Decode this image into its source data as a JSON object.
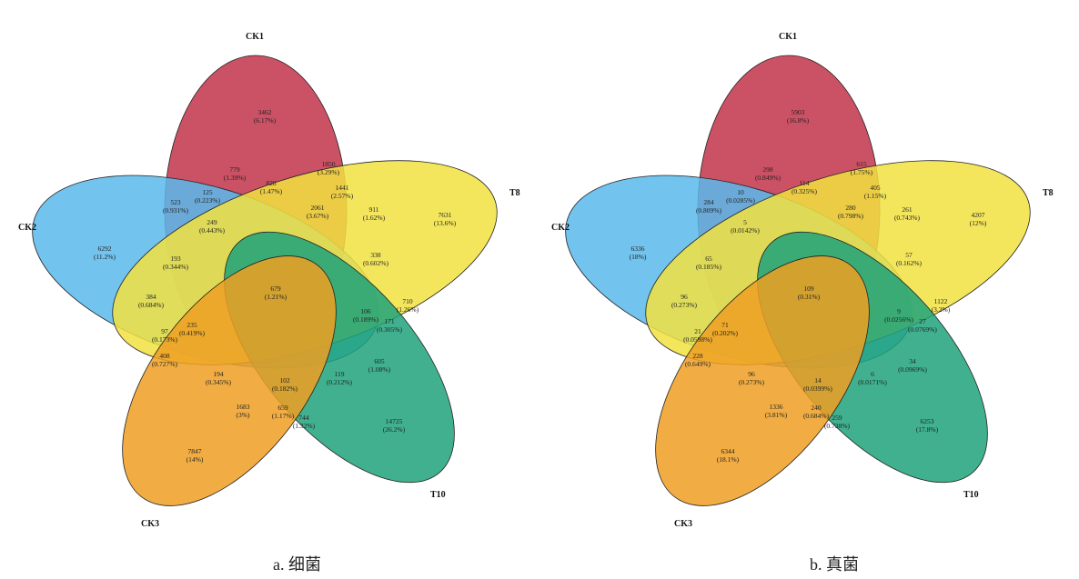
{
  "colors": {
    "CK1": "#c2324a",
    "CK2": "#5ab8ec",
    "T8": "#f2e240",
    "T10": "#1fa27a",
    "CK3": "#ef9f22"
  },
  "venns": [
    {
      "caption": "a. 细菌",
      "set_labels": {
        "CK1": "CK1",
        "CK2": "CK2",
        "T8": "T8",
        "T10": "T10",
        "CK3": "CK3"
      },
      "regions": [
        {
          "c": "3462",
          "p": "(6.17%)"
        },
        {
          "c": "6292",
          "p": "(11.2%)"
        },
        {
          "c": "7631",
          "p": "(13.6%)"
        },
        {
          "c": "14725",
          "p": "(26.2%)"
        },
        {
          "c": "7847",
          "p": "(14%)"
        },
        {
          "c": "779",
          "p": "(1.39%)"
        },
        {
          "c": "1850",
          "p": "(3.29%)"
        },
        {
          "c": "828",
          "p": "(1.47%)"
        },
        {
          "c": "1441",
          "p": "(2.57%)"
        },
        {
          "c": "125",
          "p": "(0.223%)"
        },
        {
          "c": "523",
          "p": "(0.931%)"
        },
        {
          "c": "2061",
          "p": "(3.67%)"
        },
        {
          "c": "911",
          "p": "(1.62%)"
        },
        {
          "c": "249",
          "p": "(0.443%)"
        },
        {
          "c": "193",
          "p": "(0.344%)"
        },
        {
          "c": "338",
          "p": "(0.602%)"
        },
        {
          "c": "679",
          "p": "(1.21%)"
        },
        {
          "c": "384",
          "p": "(0.684%)"
        },
        {
          "c": "710",
          "p": "(1.26%)"
        },
        {
          "c": "106",
          "p": "(0.189%)"
        },
        {
          "c": "171",
          "p": "(0.305%)"
        },
        {
          "c": "235",
          "p": "(0.419%)"
        },
        {
          "c": "97",
          "p": "(0.173%)"
        },
        {
          "c": "408",
          "p": "(0.727%)"
        },
        {
          "c": "605",
          "p": "(1.08%)"
        },
        {
          "c": "194",
          "p": "(0.345%)"
        },
        {
          "c": "102",
          "p": "(0.182%)"
        },
        {
          "c": "119",
          "p": "(0.212%)"
        },
        {
          "c": "1683",
          "p": "(3%)"
        },
        {
          "c": "659",
          "p": "(1.17%)"
        },
        {
          "c": "744",
          "p": "(1.32%)"
        }
      ]
    },
    {
      "caption": "b. 真菌",
      "set_labels": {
        "CK1": "CK1",
        "CK2": "CK2",
        "T8": "T8",
        "T10": "T10",
        "CK3": "CK3"
      },
      "regions": [
        {
          "c": "5903",
          "p": "(16.8%)"
        },
        {
          "c": "6336",
          "p": "(18%)"
        },
        {
          "c": "4207",
          "p": "(12%)"
        },
        {
          "c": "6253",
          "p": "(17.8%)"
        },
        {
          "c": "6344",
          "p": "(18.1%)"
        },
        {
          "c": "298",
          "p": "(0.849%)"
        },
        {
          "c": "615",
          "p": "(1.75%)"
        },
        {
          "c": "114",
          "p": "(0.325%)"
        },
        {
          "c": "405",
          "p": "(1.15%)"
        },
        {
          "c": "10",
          "p": "(0.0285%)"
        },
        {
          "c": "284",
          "p": "(0.809%)"
        },
        {
          "c": "280",
          "p": "(0.798%)"
        },
        {
          "c": "261",
          "p": "(0.743%)"
        },
        {
          "c": "5",
          "p": "(0.0142%)"
        },
        {
          "c": "65",
          "p": "(0.185%)"
        },
        {
          "c": "57",
          "p": "(0.162%)"
        },
        {
          "c": "109",
          "p": "(0.31%)"
        },
        {
          "c": "96",
          "p": "(0.273%)"
        },
        {
          "c": "1122",
          "p": "(3.2%)"
        },
        {
          "c": "9",
          "p": "(0.0256%)"
        },
        {
          "c": "27",
          "p": "(0.0769%)"
        },
        {
          "c": "71",
          "p": "(0.202%)"
        },
        {
          "c": "21",
          "p": "(0.0598%)"
        },
        {
          "c": "228",
          "p": "(0.649%)"
        },
        {
          "c": "34",
          "p": "(0.0969%)"
        },
        {
          "c": "96",
          "p": "(0.273%)"
        },
        {
          "c": "14",
          "p": "(0.0399%)"
        },
        {
          "c": "6",
          "p": "(0.0171%)"
        },
        {
          "c": "1336",
          "p": "(3.81%)"
        },
        {
          "c": "240",
          "p": "(0.684%)"
        },
        {
          "c": "259",
          "p": "(0.738%)"
        }
      ]
    }
  ]
}
